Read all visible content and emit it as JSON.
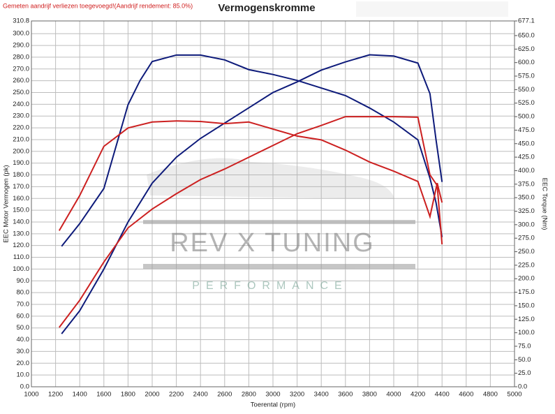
{
  "chart_data": {
    "type": "line",
    "title": "Vermogenskromme",
    "note": "Gemeten aandrijf verliezen toegevoegd!(Aandrijf rendement: 85.0%)",
    "x_label": "Toerental (rpm)",
    "y_label": "EEC Motor Vermogen (pk)",
    "y2_label": "EEC Torque (Nm)",
    "watermark": {
      "brand": "REV X TUNING",
      "tagline": "PERFORMANCE"
    },
    "grid": true,
    "xlim": [
      1000,
      5000
    ],
    "xticks": [
      1000,
      1200,
      1400,
      1600,
      1800,
      2000,
      2200,
      2400,
      2600,
      2800,
      3000,
      3200,
      3400,
      3600,
      3800,
      4000,
      4200,
      4400,
      4600,
      4800,
      5000
    ],
    "ylim": [
      0,
      310.8
    ],
    "yticks": [
      {
        "value": 0,
        "label": "0.0"
      },
      {
        "value": 10,
        "label": "10.0"
      },
      {
        "value": 20,
        "label": "20.0"
      },
      {
        "value": 30,
        "label": "30.0"
      },
      {
        "value": 40,
        "label": "40.0"
      },
      {
        "value": 50,
        "label": "50.0"
      },
      {
        "value": 60,
        "label": "60.0"
      },
      {
        "value": 70,
        "label": "70.0"
      },
      {
        "value": 80,
        "label": "80.0"
      },
      {
        "value": 90,
        "label": "90.0"
      },
      {
        "value": 100,
        "label": "100.0"
      },
      {
        "value": 110,
        "label": "110.0"
      },
      {
        "value": 120,
        "label": "120.0"
      },
      {
        "value": 130,
        "label": "130.0"
      },
      {
        "value": 140,
        "label": "140.0"
      },
      {
        "value": 150,
        "label": "150.0"
      },
      {
        "value": 160,
        "label": "160.0"
      },
      {
        "value": 170,
        "label": "170.0"
      },
      {
        "value": 180,
        "label": "180.0"
      },
      {
        "value": 190,
        "label": "190.0"
      },
      {
        "value": 200,
        "label": "200.0"
      },
      {
        "value": 210,
        "label": "210.0"
      },
      {
        "value": 220,
        "label": "220.0"
      },
      {
        "value": 230,
        "label": "230.0"
      },
      {
        "value": 240,
        "label": "240.0"
      },
      {
        "value": 250,
        "label": "250.0"
      },
      {
        "value": 260,
        "label": "260.0"
      },
      {
        "value": 270,
        "label": "270.0"
      },
      {
        "value": 280,
        "label": "280.0"
      },
      {
        "value": 290,
        "label": "290.0"
      },
      {
        "value": 300,
        "label": "300.0"
      },
      {
        "value": 310.8,
        "label": "310.8"
      }
    ],
    "y2lim": [
      0,
      677.1
    ],
    "y2ticks": [
      {
        "value": 0,
        "label": "0.0"
      },
      {
        "value": 25,
        "label": "25.0"
      },
      {
        "value": 50,
        "label": "50.0"
      },
      {
        "value": 75,
        "label": "75.0"
      },
      {
        "value": 100,
        "label": "100.0"
      },
      {
        "value": 125,
        "label": "125.0"
      },
      {
        "value": 150,
        "label": "150.0"
      },
      {
        "value": 175,
        "label": "175.0"
      },
      {
        "value": 200,
        "label": "200.0"
      },
      {
        "value": 225,
        "label": "225.0"
      },
      {
        "value": 250,
        "label": "250.0"
      },
      {
        "value": 275,
        "label": "275.0"
      },
      {
        "value": 300,
        "label": "300.0"
      },
      {
        "value": 325,
        "label": "325.0"
      },
      {
        "value": 350,
        "label": "350.0"
      },
      {
        "value": 375,
        "label": "375.0"
      },
      {
        "value": 400,
        "label": "400.0"
      },
      {
        "value": 425,
        "label": "425.0"
      },
      {
        "value": 450,
        "label": "450.0"
      },
      {
        "value": 475,
        "label": "475.0"
      },
      {
        "value": 500,
        "label": "500.0"
      },
      {
        "value": 525,
        "label": "525.0"
      },
      {
        "value": 550,
        "label": "550.0"
      },
      {
        "value": 575,
        "label": "575.0"
      },
      {
        "value": 600,
        "label": "600.0"
      },
      {
        "value": 625,
        "label": "625.0"
      },
      {
        "value": 650,
        "label": "650.0"
      },
      {
        "value": 677.1,
        "label": "677.1"
      }
    ],
    "series": [
      {
        "color": "#0d1a7a",
        "axis": "y",
        "x": [
          1250,
          1400,
          1600,
          1800,
          2000,
          2200,
          2400,
          2600,
          2800,
          3000,
          3200,
          3400,
          3600,
          3800,
          4000,
          4200,
          4300,
          4350,
          4400
        ],
        "values": [
          45,
          64.6,
          100,
          140,
          173,
          195,
          211,
          224,
          237,
          250,
          259,
          269,
          276,
          282,
          281,
          275,
          249,
          210,
          174
        ]
      },
      {
        "color": "#0d1a7a",
        "axis": "y2",
        "x": [
          1250,
          1400,
          1600,
          1800,
          1900,
          2000,
          2200,
          2400,
          2600,
          2800,
          3000,
          3200,
          3400,
          3600,
          3800,
          4000,
          4200,
          4300,
          4350,
          4400
        ],
        "values": [
          260,
          302,
          367,
          522,
          567,
          602,
          614,
          614,
          605,
          587,
          578,
          567,
          553,
          539,
          516,
          490,
          457,
          386,
          341,
          277
        ]
      },
      {
        "color": "#cc2020",
        "axis": "y",
        "x": [
          1230,
          1400,
          1600,
          1800,
          2000,
          2200,
          2400,
          2600,
          2800,
          3000,
          3200,
          3400,
          3600,
          3800,
          4000,
          4200,
          4300,
          4360,
          4400
        ],
        "values": [
          50.4,
          73.5,
          106,
          135,
          151,
          164,
          176,
          185,
          195,
          205,
          215,
          222,
          229.5,
          229.5,
          229.5,
          229,
          180,
          171,
          121
        ]
      },
      {
        "color": "#cc2020",
        "axis": "y2",
        "x": [
          1230,
          1400,
          1600,
          1800,
          2000,
          2200,
          2400,
          2600,
          2800,
          3000,
          3200,
          3400,
          3600,
          3800,
          4000,
          4200,
          4300,
          4360,
          4400
        ],
        "values": [
          289,
          354,
          445,
          479,
          490,
          492,
          491,
          487,
          490,
          477,
          464,
          457,
          438,
          416,
          399,
          380,
          315,
          377,
          341
        ]
      }
    ]
  }
}
